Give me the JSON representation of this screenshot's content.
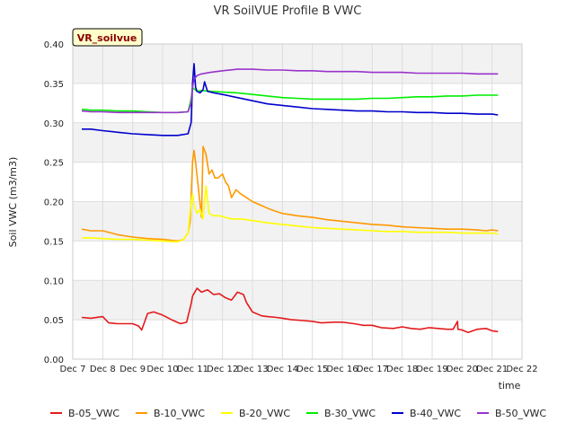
{
  "chart_data": {
    "type": "line",
    "title": "VR SoilVUE Profile B VWC",
    "site_label": "VR_soilvue",
    "xlabel": "time",
    "ylabel": "Soil VWC (m3/m3)",
    "x_ticks": [
      "Dec 7",
      "Dec 8",
      "Dec 9",
      "Dec 10",
      "Dec 11",
      "Dec 12",
      "Dec 13",
      "Dec 14",
      "Dec 15",
      "Dec 16",
      "Dec 17",
      "Dec 18",
      "Dec 19",
      "Dec 20",
      "Dec 21",
      "Dec 22"
    ],
    "x_tick_days": [
      7,
      8,
      9,
      10,
      11,
      12,
      13,
      14,
      15,
      16,
      17,
      18,
      19,
      20,
      21,
      22
    ],
    "xlim": [
      7,
      22
    ],
    "y_ticks": [
      "0.00",
      "0.05",
      "0.10",
      "0.15",
      "0.20",
      "0.25",
      "0.30",
      "0.35",
      "0.40"
    ],
    "ylim": [
      0,
      0.4
    ],
    "grid": true,
    "legend_position": "bottom",
    "series": [
      {
        "name": "B-05_VWC",
        "color": "#e41a1c",
        "x": [
          7.3,
          7.6,
          8.0,
          8.2,
          8.5,
          9.0,
          9.2,
          9.3,
          9.5,
          9.7,
          10.0,
          10.3,
          10.6,
          10.8,
          10.95,
          11.0,
          11.15,
          11.3,
          11.5,
          11.7,
          11.9,
          12.1,
          12.3,
          12.5,
          12.7,
          12.8,
          13.0,
          13.3,
          13.5,
          13.8,
          14.0,
          14.3,
          14.7,
          15.0,
          15.3,
          15.7,
          16.0,
          16.4,
          16.7,
          17.0,
          17.3,
          17.7,
          18.0,
          18.3,
          18.6,
          18.9,
          19.2,
          19.5,
          19.7,
          19.85,
          19.86,
          20.0,
          20.2,
          20.5,
          20.8,
          21.0,
          21.2
        ],
        "y": [
          0.053,
          0.052,
          0.054,
          0.046,
          0.045,
          0.045,
          0.042,
          0.037,
          0.058,
          0.06,
          0.056,
          0.05,
          0.045,
          0.047,
          0.07,
          0.08,
          0.09,
          0.085,
          0.088,
          0.082,
          0.083,
          0.078,
          0.075,
          0.085,
          0.082,
          0.072,
          0.06,
          0.055,
          0.054,
          0.053,
          0.052,
          0.05,
          0.049,
          0.048,
          0.046,
          0.047,
          0.047,
          0.045,
          0.043,
          0.043,
          0.04,
          0.039,
          0.041,
          0.039,
          0.038,
          0.04,
          0.039,
          0.038,
          0.038,
          0.048,
          0.038,
          0.037,
          0.034,
          0.038,
          0.039,
          0.036,
          0.035
        ]
      },
      {
        "name": "B-10_VWC",
        "color": "#ff9900",
        "x": [
          7.3,
          7.6,
          8.0,
          8.5,
          9.0,
          9.5,
          10.0,
          10.5,
          10.7,
          10.85,
          10.92,
          11.0,
          11.05,
          11.1,
          11.2,
          11.3,
          11.35,
          11.45,
          11.55,
          11.65,
          11.75,
          11.85,
          12.0,
          12.1,
          12.2,
          12.3,
          12.45,
          12.6,
          12.8,
          13.0,
          13.3,
          13.6,
          14.0,
          14.5,
          15.0,
          15.5,
          16.0,
          16.5,
          17.0,
          17.5,
          18.0,
          18.5,
          19.0,
          19.5,
          20.0,
          20.5,
          20.8,
          21.0,
          21.2
        ],
        "y": [
          0.165,
          0.163,
          0.163,
          0.158,
          0.155,
          0.153,
          0.152,
          0.15,
          0.152,
          0.16,
          0.175,
          0.25,
          0.265,
          0.25,
          0.215,
          0.18,
          0.27,
          0.26,
          0.235,
          0.24,
          0.23,
          0.23,
          0.235,
          0.225,
          0.22,
          0.205,
          0.215,
          0.21,
          0.205,
          0.2,
          0.195,
          0.19,
          0.185,
          0.182,
          0.18,
          0.177,
          0.175,
          0.173,
          0.171,
          0.17,
          0.168,
          0.167,
          0.166,
          0.165,
          0.165,
          0.164,
          0.163,
          0.164,
          0.163
        ]
      },
      {
        "name": "B-20_VWC",
        "color": "#ffff00",
        "x": [
          7.3,
          7.6,
          8.0,
          8.5,
          9.0,
          9.5,
          10.0,
          10.5,
          10.7,
          10.85,
          10.95,
          11.0,
          11.05,
          11.15,
          11.25,
          11.35,
          11.45,
          11.55,
          11.7,
          11.9,
          12.1,
          12.3,
          12.6,
          13.0,
          13.5,
          14.0,
          14.5,
          15.0,
          15.5,
          16.0,
          16.5,
          17.0,
          17.5,
          18.0,
          18.5,
          19.0,
          19.5,
          20.0,
          20.5,
          21.0,
          21.2
        ],
        "y": [
          0.154,
          0.154,
          0.153,
          0.152,
          0.152,
          0.151,
          0.15,
          0.149,
          0.152,
          0.16,
          0.2,
          0.21,
          0.195,
          0.185,
          0.19,
          0.178,
          0.22,
          0.185,
          0.182,
          0.182,
          0.18,
          0.178,
          0.178,
          0.176,
          0.173,
          0.171,
          0.169,
          0.167,
          0.166,
          0.165,
          0.164,
          0.163,
          0.162,
          0.162,
          0.161,
          0.161,
          0.161,
          0.16,
          0.16,
          0.16,
          0.159
        ]
      },
      {
        "name": "B-30_VWC",
        "color": "#00ee00",
        "x": [
          7.3,
          7.6,
          8.0,
          8.5,
          9.0,
          9.5,
          10.0,
          10.5,
          10.85,
          10.95,
          11.0,
          11.05,
          11.15,
          11.3,
          11.6,
          12.0,
          12.5,
          13.0,
          13.5,
          14.0,
          14.5,
          15.0,
          15.5,
          16.0,
          16.5,
          17.0,
          17.5,
          18.0,
          18.5,
          19.0,
          19.5,
          20.0,
          20.5,
          21.0,
          21.2
        ],
        "y": [
          0.317,
          0.316,
          0.316,
          0.315,
          0.315,
          0.314,
          0.313,
          0.313,
          0.314,
          0.33,
          0.345,
          0.343,
          0.34,
          0.341,
          0.34,
          0.339,
          0.338,
          0.336,
          0.334,
          0.332,
          0.331,
          0.33,
          0.33,
          0.33,
          0.33,
          0.331,
          0.331,
          0.332,
          0.333,
          0.333,
          0.334,
          0.334,
          0.335,
          0.335,
          0.335
        ]
      },
      {
        "name": "B-40_VWC",
        "color": "#0000cc",
        "x": [
          7.3,
          7.6,
          8.0,
          8.5,
          9.0,
          9.5,
          10.0,
          10.5,
          10.85,
          10.95,
          11.0,
          11.05,
          11.1,
          11.15,
          11.25,
          11.35,
          11.4,
          11.5,
          11.7,
          12.0,
          12.5,
          13.0,
          13.5,
          14.0,
          14.5,
          15.0,
          15.5,
          16.0,
          16.5,
          17.0,
          17.5,
          18.0,
          18.5,
          19.0,
          19.5,
          20.0,
          20.5,
          21.0,
          21.2
        ],
        "y": [
          0.292,
          0.292,
          0.29,
          0.288,
          0.286,
          0.285,
          0.284,
          0.284,
          0.286,
          0.3,
          0.35,
          0.375,
          0.345,
          0.34,
          0.338,
          0.342,
          0.352,
          0.34,
          0.338,
          0.336,
          0.332,
          0.328,
          0.324,
          0.322,
          0.32,
          0.318,
          0.317,
          0.316,
          0.315,
          0.315,
          0.314,
          0.314,
          0.313,
          0.313,
          0.312,
          0.312,
          0.311,
          0.311,
          0.31
        ]
      },
      {
        "name": "B-50_VWC",
        "color": "#9933cc",
        "x": [
          7.3,
          7.6,
          8.0,
          8.5,
          9.0,
          9.5,
          10.0,
          10.5,
          10.85,
          10.95,
          11.0,
          11.05,
          11.15,
          11.3,
          11.6,
          12.0,
          12.5,
          13.0,
          13.5,
          14.0,
          14.5,
          15.0,
          15.5,
          16.0,
          16.5,
          17.0,
          17.5,
          18.0,
          18.5,
          19.0,
          19.5,
          20.0,
          20.5,
          21.0,
          21.2
        ],
        "y": [
          0.315,
          0.314,
          0.314,
          0.313,
          0.313,
          0.313,
          0.313,
          0.313,
          0.314,
          0.325,
          0.345,
          0.355,
          0.36,
          0.362,
          0.364,
          0.366,
          0.368,
          0.368,
          0.367,
          0.367,
          0.366,
          0.366,
          0.365,
          0.365,
          0.365,
          0.364,
          0.364,
          0.364,
          0.363,
          0.363,
          0.363,
          0.363,
          0.362,
          0.362,
          0.362
        ]
      }
    ]
  }
}
